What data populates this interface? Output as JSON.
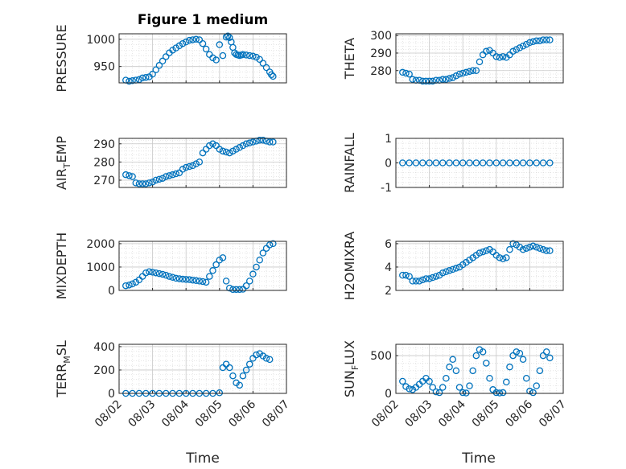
{
  "chart_data": [
    {
      "type": "scatter",
      "title": "Figure 1 medium",
      "ylabel": "PRESSURE",
      "x_ticks": [
        "08/02",
        "08/03",
        "08/04",
        "08/05",
        "08/06",
        "08/07"
      ],
      "ylim": [
        920,
        1010
      ],
      "y_ticks": [
        950,
        1000
      ],
      "x": [
        0.2,
        0.3,
        0.4,
        0.5,
        0.6,
        0.7,
        0.8,
        0.9,
        1.0,
        1.1,
        1.2,
        1.3,
        1.4,
        1.5,
        1.6,
        1.7,
        1.8,
        1.9,
        2.0,
        2.1,
        2.2,
        2.3,
        2.4,
        2.5,
        2.6,
        2.7,
        2.8,
        2.9,
        3.0,
        3.1,
        3.2,
        3.25,
        3.3,
        3.35,
        3.4,
        3.45,
        3.5,
        3.55,
        3.6,
        3.65,
        3.7,
        3.8,
        3.9,
        4.0,
        4.1,
        4.2,
        4.3,
        4.4,
        4.5,
        4.55,
        4.6
      ],
      "y": [
        925,
        923,
        924,
        925,
        926,
        929,
        930,
        931,
        936,
        944,
        952,
        960,
        968,
        975,
        980,
        984,
        988,
        992,
        995,
        998,
        999,
        1000,
        999,
        992,
        982,
        972,
        966,
        962,
        990,
        970,
        1004,
        1006,
        1003,
        995,
        985,
        975,
        972,
        971,
        970,
        971,
        972,
        971,
        970,
        969,
        967,
        963,
        956,
        948,
        940,
        935,
        932
      ]
    },
    {
      "type": "scatter",
      "ylabel": "THETA",
      "x_ticks": [
        "08/02",
        "08/03",
        "08/04",
        "08/05",
        "08/06",
        "08/07"
      ],
      "ylim": [
        273,
        301
      ],
      "y_ticks": [
        280,
        290,
        300
      ],
      "x": [
        0.2,
        0.3,
        0.4,
        0.5,
        0.6,
        0.7,
        0.8,
        0.9,
        1.0,
        1.1,
        1.2,
        1.3,
        1.4,
        1.5,
        1.6,
        1.7,
        1.8,
        1.9,
        2.0,
        2.1,
        2.2,
        2.3,
        2.4,
        2.5,
        2.6,
        2.7,
        2.8,
        2.9,
        3.0,
        3.1,
        3.2,
        3.3,
        3.4,
        3.5,
        3.6,
        3.7,
        3.8,
        3.9,
        4.0,
        4.1,
        4.2,
        4.3,
        4.4,
        4.5,
        4.6
      ],
      "y": [
        279,
        278.5,
        278,
        275,
        274.5,
        274.5,
        274,
        274,
        274,
        274,
        274.5,
        274.5,
        275,
        275,
        275.5,
        276,
        277,
        278,
        278.5,
        279,
        279.5,
        280,
        280,
        285,
        289,
        291,
        291.5,
        290,
        288,
        287.5,
        288,
        287.5,
        289,
        291,
        292,
        293,
        294,
        295,
        296,
        296.5,
        297,
        297,
        297.5,
        297.5,
        297.5
      ]
    },
    {
      "type": "scatter",
      "ylabel": "AIR_TEMP",
      "x_ticks": [
        "08/02",
        "08/03",
        "08/04",
        "08/05",
        "08/06",
        "08/07"
      ],
      "ylim": [
        266,
        293
      ],
      "y_ticks": [
        270,
        280,
        290
      ],
      "x": [
        0.2,
        0.3,
        0.4,
        0.5,
        0.6,
        0.7,
        0.8,
        0.9,
        1.0,
        1.1,
        1.2,
        1.3,
        1.4,
        1.5,
        1.6,
        1.7,
        1.8,
        1.9,
        2.0,
        2.1,
        2.2,
        2.3,
        2.4,
        2.5,
        2.6,
        2.7,
        2.8,
        2.9,
        3.0,
        3.1,
        3.2,
        3.3,
        3.4,
        3.5,
        3.6,
        3.7,
        3.8,
        3.9,
        4.0,
        4.1,
        4.2,
        4.3,
        4.4,
        4.5,
        4.6
      ],
      "y": [
        273,
        272.5,
        272,
        268.5,
        268,
        268,
        268,
        268.5,
        269,
        270,
        270.5,
        271,
        272,
        272.5,
        273,
        273.5,
        274,
        276,
        277,
        277.5,
        278,
        279,
        280,
        285,
        287,
        289,
        290,
        289,
        287,
        286,
        285.5,
        285,
        286,
        287,
        288,
        289,
        290,
        290.5,
        291,
        291.5,
        292,
        292,
        291.5,
        291,
        291
      ]
    },
    {
      "type": "scatter",
      "ylabel": "RAINFALL",
      "x_ticks": [
        "08/02",
        "08/03",
        "08/04",
        "08/05",
        "08/06",
        "08/07"
      ],
      "ylim": [
        -1,
        1
      ],
      "y_ticks": [
        -1,
        0,
        1
      ],
      "x": [
        0.2,
        0.4,
        0.6,
        0.8,
        1.0,
        1.2,
        1.4,
        1.6,
        1.8,
        2.0,
        2.2,
        2.4,
        2.6,
        2.8,
        3.0,
        3.2,
        3.4,
        3.6,
        3.8,
        4.0,
        4.2,
        4.4,
        4.6
      ],
      "y": [
        0,
        0,
        0,
        0,
        0,
        0,
        0,
        0,
        0,
        0,
        0,
        0,
        0,
        0,
        0,
        0,
        0,
        0,
        0,
        0,
        0,
        0,
        0
      ]
    },
    {
      "type": "scatter",
      "ylabel": "MIXDEPTH",
      "x_ticks": [
        "08/02",
        "08/03",
        "08/04",
        "08/05",
        "08/06",
        "08/07"
      ],
      "ylim": [
        0,
        2100
      ],
      "y_ticks": [
        0,
        1000,
        2000
      ],
      "x": [
        0.2,
        0.3,
        0.4,
        0.5,
        0.6,
        0.7,
        0.8,
        0.9,
        1.0,
        1.1,
        1.2,
        1.3,
        1.4,
        1.5,
        1.6,
        1.7,
        1.8,
        1.9,
        2.0,
        2.1,
        2.2,
        2.3,
        2.4,
        2.5,
        2.6,
        2.7,
        2.8,
        2.9,
        3.0,
        3.1,
        3.2,
        3.3,
        3.4,
        3.5,
        3.6,
        3.7,
        3.8,
        3.9,
        4.0,
        4.1,
        4.2,
        4.3,
        4.4,
        4.5,
        4.6
      ],
      "y": [
        200,
        230,
        280,
        350,
        450,
        600,
        750,
        800,
        780,
        750,
        720,
        690,
        650,
        600,
        560,
        520,
        500,
        480,
        470,
        460,
        440,
        420,
        400,
        380,
        350,
        600,
        850,
        1100,
        1300,
        1400,
        400,
        100,
        40,
        40,
        40,
        50,
        200,
        400,
        700,
        1000,
        1300,
        1600,
        1800,
        1950,
        2000
      ]
    },
    {
      "type": "scatter",
      "ylabel": "H2OMIXRA",
      "x_ticks": [
        "08/02",
        "08/03",
        "08/04",
        "08/05",
        "08/06",
        "08/07"
      ],
      "ylim": [
        2,
        6.2
      ],
      "y_ticks": [
        2,
        4,
        6
      ],
      "x": [
        0.2,
        0.3,
        0.4,
        0.5,
        0.6,
        0.7,
        0.8,
        0.9,
        1.0,
        1.1,
        1.2,
        1.3,
        1.4,
        1.5,
        1.6,
        1.7,
        1.8,
        1.9,
        2.0,
        2.1,
        2.2,
        2.3,
        2.4,
        2.5,
        2.6,
        2.7,
        2.8,
        2.9,
        3.0,
        3.1,
        3.2,
        3.3,
        3.4,
        3.5,
        3.6,
        3.7,
        3.8,
        3.9,
        4.0,
        4.1,
        4.2,
        4.3,
        4.4,
        4.5,
        4.6
      ],
      "y": [
        3.3,
        3.3,
        3.2,
        2.8,
        2.8,
        2.8,
        2.9,
        3.0,
        3.0,
        3.1,
        3.2,
        3.3,
        3.5,
        3.6,
        3.7,
        3.8,
        3.9,
        4.0,
        4.2,
        4.4,
        4.6,
        4.8,
        5.0,
        5.2,
        5.3,
        5.4,
        5.5,
        5.3,
        5.0,
        4.8,
        4.7,
        4.8,
        5.5,
        6.0,
        5.9,
        5.7,
        5.5,
        5.6,
        5.7,
        5.8,
        5.7,
        5.6,
        5.5,
        5.4,
        5.4
      ]
    },
    {
      "type": "scatter",
      "ylabel": "TERR_MSL",
      "x_ticks": [
        "08/02",
        "08/03",
        "08/04",
        "08/05",
        "08/06",
        "08/07"
      ],
      "ylim": [
        0,
        420
      ],
      "y_ticks": [
        0,
        200,
        400
      ],
      "x": [
        0.2,
        0.4,
        0.6,
        0.8,
        1.0,
        1.2,
        1.4,
        1.6,
        1.8,
        2.0,
        2.2,
        2.4,
        2.6,
        2.8,
        3.0,
        3.1,
        3.2,
        3.3,
        3.4,
        3.5,
        3.6,
        3.7,
        3.8,
        3.9,
        4.0,
        4.1,
        4.2,
        4.3,
        4.4,
        4.5
      ],
      "y": [
        0,
        0,
        0,
        0,
        0,
        0,
        0,
        0,
        0,
        0,
        0,
        0,
        0,
        0,
        5,
        220,
        250,
        220,
        150,
        90,
        70,
        150,
        200,
        250,
        300,
        330,
        340,
        320,
        300,
        290
      ]
    },
    {
      "type": "scatter",
      "ylabel": "SUN_FLUX",
      "x_ticks": [
        "08/02",
        "08/03",
        "08/04",
        "08/05",
        "08/06",
        "08/07"
      ],
      "ylim": [
        0,
        650
      ],
      "y_ticks": [
        0,
        500
      ],
      "x": [
        0.2,
        0.3,
        0.4,
        0.5,
        0.6,
        0.7,
        0.8,
        0.9,
        1.0,
        1.1,
        1.2,
        1.3,
        1.4,
        1.5,
        1.6,
        1.7,
        1.8,
        1.9,
        2.0,
        2.1,
        2.2,
        2.3,
        2.4,
        2.5,
        2.6,
        2.7,
        2.8,
        2.9,
        3.0,
        3.1,
        3.2,
        3.3,
        3.4,
        3.5,
        3.6,
        3.7,
        3.8,
        3.9,
        4.0,
        4.1,
        4.2,
        4.3,
        4.4,
        4.5,
        4.6
      ],
      "y": [
        160,
        90,
        60,
        50,
        80,
        120,
        160,
        200,
        160,
        80,
        20,
        10,
        80,
        200,
        350,
        450,
        300,
        80,
        10,
        5,
        100,
        300,
        500,
        580,
        550,
        400,
        200,
        50,
        10,
        5,
        10,
        150,
        350,
        500,
        550,
        530,
        450,
        200,
        30,
        10,
        100,
        300,
        500,
        550,
        470
      ]
    }
  ],
  "xlabels": [
    "Time",
    "Time"
  ]
}
